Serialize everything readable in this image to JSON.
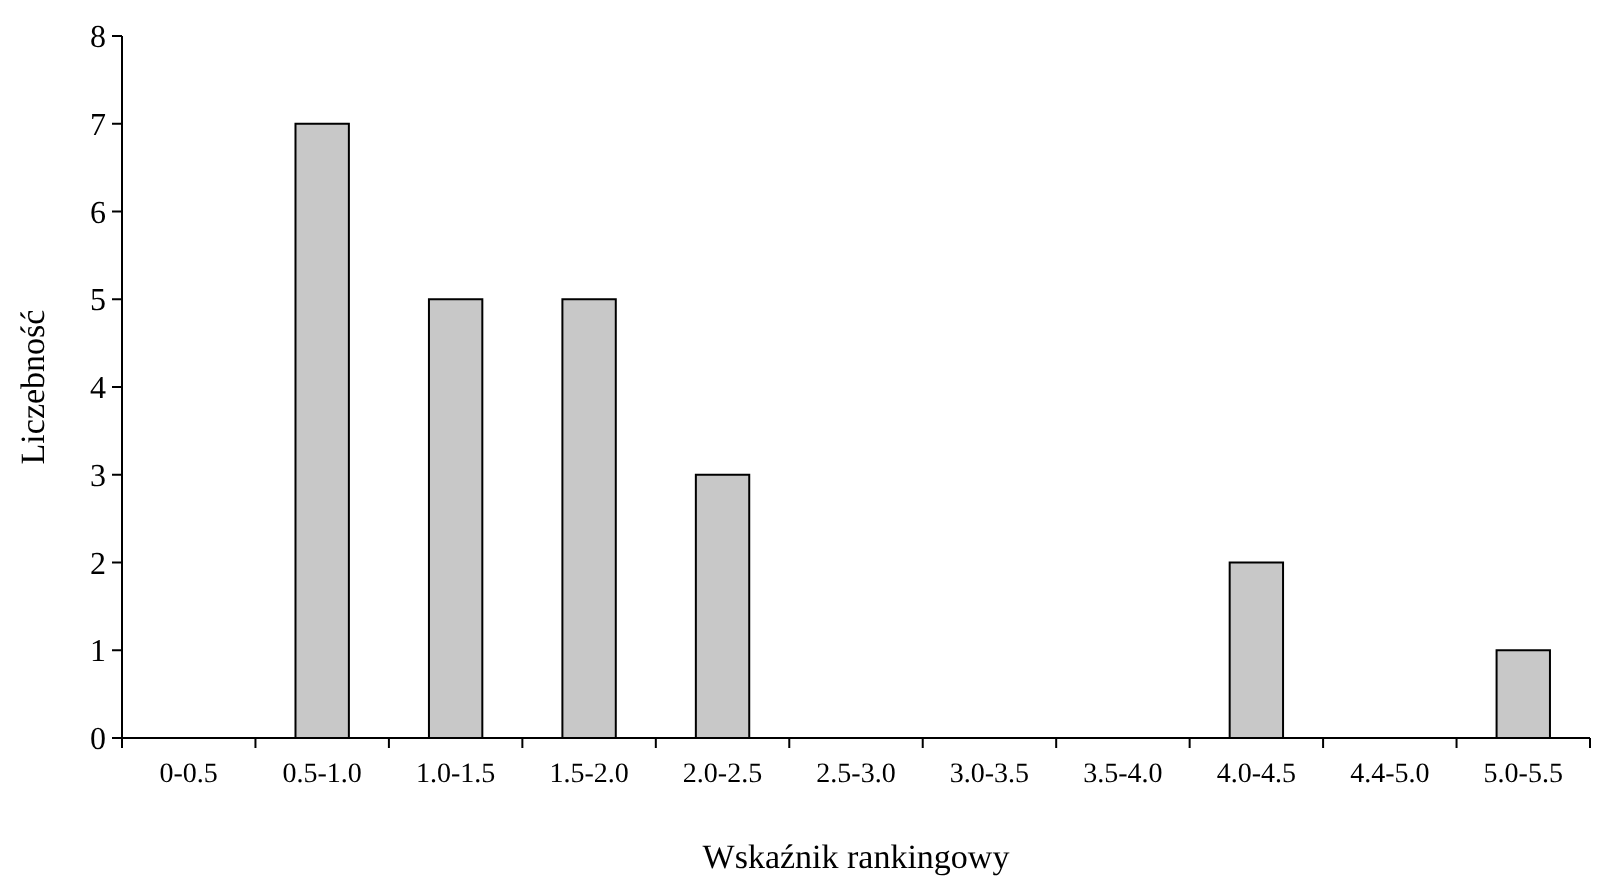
{
  "chart_data": {
    "type": "bar",
    "xlabel": "Wskaźnik rankingowy",
    "ylabel": "Liczebność",
    "categories": [
      "0-0.5",
      "0.5-1.0",
      "1.0-1.5",
      "1.5-2.0",
      "2.0-2.5",
      "2.5-3.0",
      "3.0-3.5",
      "3.5-4.0",
      "4.0-4.5",
      "4.4-5.0",
      "5.0-5.5"
    ],
    "values": [
      0,
      7,
      5,
      5,
      3,
      0,
      0,
      0,
      2,
      0,
      1
    ],
    "color": "#c8c8c8",
    "ylim": [
      0,
      8
    ],
    "yticks": [
      0,
      1,
      2,
      3,
      4,
      5,
      6,
      7,
      8
    ],
    "grid": false
  }
}
